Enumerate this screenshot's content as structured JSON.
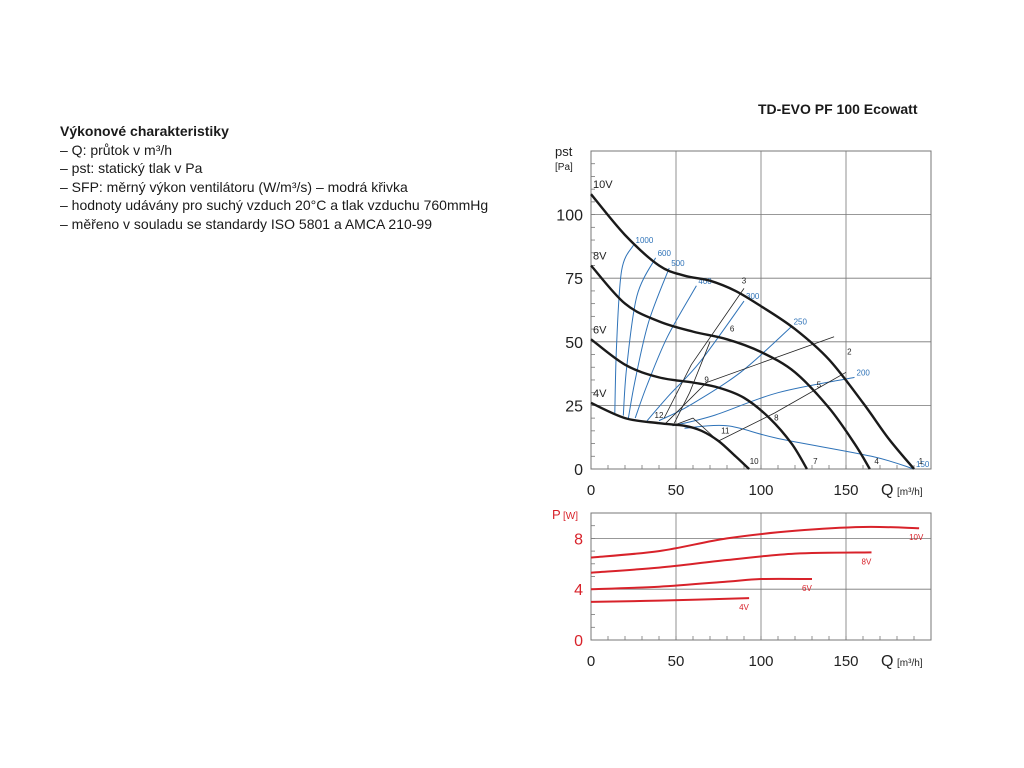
{
  "model_title": "TD-EVO PF 100 Ecowatt",
  "legend": {
    "heading": "Výkonové charakteristiky",
    "items": [
      "– Q: průtok v m³/h",
      "– pst: statický tlak v Pa",
      "– SFP: měrný výkon ventilátoru (W/m³/s) – modrá křivka",
      "– hodnoty udávány pro suchý vzduch 20°C a tlak vzduchu 760mmHg",
      "– měřeno v souladu se standardy ISO 5801 a AMCA 210-99"
    ]
  },
  "colors": {
    "pressure_curve": "#1a1a1a",
    "sfp_curve": "#2f73b8",
    "power_curve": "#d8222a",
    "grid": "#777777"
  },
  "chart_data": [
    {
      "type": "line",
      "ylabel": "pst",
      "ylabel_unit": "[Pa]",
      "xlabel": "Q",
      "xlabel_unit": "[m³/h]",
      "xlim": [
        0,
        200
      ],
      "ylim": [
        0,
        125
      ],
      "x_ticks": [
        0,
        50,
        100,
        150
      ],
      "y_ticks": [
        0,
        25,
        50,
        75,
        100
      ],
      "grid": true,
      "series": [
        {
          "name": "10V",
          "points": [
            [
              0,
              108
            ],
            [
              20,
              92
            ],
            [
              40,
              80
            ],
            [
              55,
              76
            ],
            [
              70,
              74
            ],
            [
              85,
              70
            ],
            [
              100,
              64
            ],
            [
              120,
              55
            ],
            [
              140,
              43
            ],
            [
              160,
              26
            ],
            [
              175,
              12
            ],
            [
              190,
              0
            ]
          ]
        },
        {
          "name": "8V",
          "points": [
            [
              0,
              80
            ],
            [
              20,
              65
            ],
            [
              40,
              58
            ],
            [
              60,
              54
            ],
            [
              80,
              51
            ],
            [
              100,
              46
            ],
            [
              120,
              38
            ],
            [
              140,
              24
            ],
            [
              155,
              10
            ],
            [
              164,
              0
            ]
          ]
        },
        {
          "name": "6V",
          "points": [
            [
              0,
              51
            ],
            [
              20,
              41
            ],
            [
              40,
              36
            ],
            [
              60,
              34
            ],
            [
              75,
              32
            ],
            [
              90,
              28
            ],
            [
              105,
              20
            ],
            [
              118,
              10
            ],
            [
              127,
              0
            ]
          ]
        },
        {
          "name": "4V",
          "points": [
            [
              0,
              26
            ],
            [
              20,
              20
            ],
            [
              40,
              18
            ],
            [
              55,
              17
            ],
            [
              65,
              15
            ],
            [
              75,
              11
            ],
            [
              85,
              5
            ],
            [
              93,
              0
            ]
          ]
        }
      ],
      "operating_lines": [
        {
          "points": [
            [
              43,
              20
            ],
            [
              59,
              41
            ],
            [
              90,
              71
            ]
          ]
        },
        {
          "points": [
            [
              49,
              18
            ],
            [
              58,
              30
            ],
            [
              70,
              50
            ]
          ]
        },
        {
          "points": [
            [
              44,
              18
            ],
            [
              68,
              34
            ],
            [
              143,
              52
            ]
          ]
        },
        {
          "points": [
            [
              75,
              11
            ],
            [
              108,
              22
            ],
            [
              150,
              38
            ]
          ]
        },
        {
          "points": [
            [
              48,
              17
            ],
            [
              60,
              20
            ],
            [
              93,
              0
            ]
          ]
        }
      ],
      "sfp_curves": [
        {
          "label": "1000",
          "points": [
            [
              14,
              22
            ],
            [
              15,
              48
            ],
            [
              18,
              78
            ],
            [
              25,
              88
            ]
          ]
        },
        {
          "label": "600",
          "points": [
            [
              19,
              21
            ],
            [
              21,
              40
            ],
            [
              27,
              68
            ],
            [
              38,
              83
            ]
          ]
        },
        {
          "label": "500",
          "points": [
            [
              22,
              20
            ],
            [
              26,
              35
            ],
            [
              34,
              58
            ],
            [
              46,
              79
            ]
          ]
        },
        {
          "label": "400",
          "points": [
            [
              26,
              20
            ],
            [
              33,
              33
            ],
            [
              45,
              52
            ],
            [
              62,
              72
            ]
          ]
        },
        {
          "label": "300",
          "points": [
            [
              33,
              19
            ],
            [
              46,
              29
            ],
            [
              64,
              42
            ],
            [
              90,
              66
            ]
          ]
        },
        {
          "label": "250",
          "points": [
            [
              40,
              19
            ],
            [
              58,
              25
            ],
            [
              88,
              38
            ],
            [
              118,
              56
            ]
          ]
        },
        {
          "label": "200",
          "points": [
            [
              48,
              17
            ],
            [
              72,
              21
            ],
            [
              110,
              30
            ],
            [
              155,
              36
            ]
          ]
        },
        {
          "label": "150",
          "points": [
            [
              55,
              16
            ],
            [
              80,
              17
            ],
            [
              110,
              12
            ],
            [
              165,
              5
            ],
            [
              190,
              0
            ]
          ]
        }
      ],
      "point_labels": [
        {
          "label": "1",
          "x": 194,
          "y": 2
        },
        {
          "label": "2",
          "x": 152,
          "y": 45
        },
        {
          "label": "3",
          "x": 90,
          "y": 73
        },
        {
          "label": "4",
          "x": 168,
          "y": 2
        },
        {
          "label": "5",
          "x": 134,
          "y": 32
        },
        {
          "label": "6",
          "x": 83,
          "y": 54
        },
        {
          "label": "7",
          "x": 132,
          "y": 2
        },
        {
          "label": "8",
          "x": 109,
          "y": 19
        },
        {
          "label": "9",
          "x": 68,
          "y": 34
        },
        {
          "label": "10",
          "x": 96,
          "y": 2
        },
        {
          "label": "11",
          "x": 79,
          "y": 14
        },
        {
          "label": "12",
          "x": 40,
          "y": 20
        }
      ]
    },
    {
      "type": "line",
      "ylabel": "P",
      "ylabel_unit": "[W]",
      "xlabel": "Q",
      "xlabel_unit": "[m³/h]",
      "xlim": [
        0,
        200
      ],
      "ylim": [
        0,
        10
      ],
      "x_ticks": [
        0,
        50,
        100,
        150
      ],
      "y_ticks": [
        0,
        4,
        8
      ],
      "grid": true,
      "series": [
        {
          "name": "10V",
          "points": [
            [
              0,
              6.5
            ],
            [
              40,
              7.0
            ],
            [
              80,
              8.0
            ],
            [
              120,
              8.6
            ],
            [
              160,
              8.9
            ],
            [
              193,
              8.8
            ]
          ]
        },
        {
          "name": "8V",
          "points": [
            [
              0,
              5.3
            ],
            [
              40,
              5.7
            ],
            [
              80,
              6.3
            ],
            [
              120,
              6.8
            ],
            [
              165,
              6.9
            ]
          ]
        },
        {
          "name": "6V",
          "points": [
            [
              0,
              4.0
            ],
            [
              40,
              4.2
            ],
            [
              80,
              4.6
            ],
            [
              100,
              4.8
            ],
            [
              130,
              4.8
            ]
          ]
        },
        {
          "name": "4V",
          "points": [
            [
              0,
              3.0
            ],
            [
              40,
              3.1
            ],
            [
              93,
              3.3
            ]
          ]
        }
      ]
    }
  ]
}
